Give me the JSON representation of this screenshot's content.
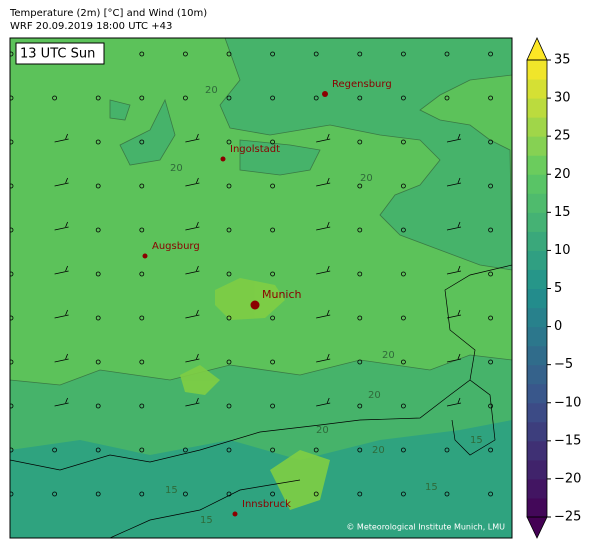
{
  "title": "Temperature (2m) [°C] and Wind (10m)",
  "subtitle": "WRF 20.09.2019 18:00 UTC +43",
  "time_label": "13 UTC Sun",
  "cities": [
    "Regensburg",
    "Ingolstadt",
    "Augsburg",
    "Munich",
    "Innsbruck"
  ],
  "contour_labels": [
    20,
    20,
    20,
    20,
    20,
    20,
    20,
    15,
    15,
    15,
    15
  ],
  "credit": "© Meteorological Institute Munich, LMU",
  "colorbar": {
    "lim": [
      -25,
      35
    ],
    "ticks": [
      {
        "value": -25,
        "label": "−25"
      },
      {
        "value": -20,
        "label": "−20"
      },
      {
        "value": -15,
        "label": "−15"
      },
      {
        "value": -10,
        "label": "−10"
      },
      {
        "value": -5,
        "label": "−5"
      },
      0,
      5,
      10,
      15,
      20,
      25,
      30,
      35
    ]
  }
}
